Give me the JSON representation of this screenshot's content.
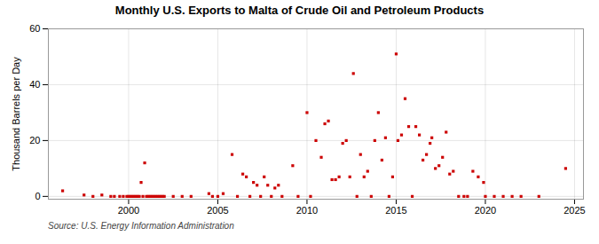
{
  "chart_data": {
    "type": "scatter",
    "title": "Monthly U.S. Exports to Malta of Crude Oil and Petroleum Products",
    "ylabel": "Thousand Barrels per Day",
    "source": "Source: U.S. Energy Information Administration",
    "x": [
      1996.3,
      1997.5,
      1998.0,
      1998.5,
      1999.0,
      1999.2,
      1999.5,
      1999.7,
      1999.9,
      2000.0,
      2000.1,
      2000.2,
      2000.3,
      2000.4,
      2000.5,
      2000.6,
      2000.7,
      2000.8,
      2000.9,
      2001.0,
      2001.1,
      2001.2,
      2001.3,
      2001.4,
      2001.5,
      2001.6,
      2001.7,
      2001.8,
      2001.9,
      2002.0,
      2002.5,
      2003.0,
      2003.5,
      2004.5,
      2004.7,
      2005.0,
      2005.3,
      2005.8,
      2006.1,
      2006.4,
      2006.6,
      2006.8,
      2007.0,
      2007.2,
      2007.4,
      2007.6,
      2007.8,
      2008.0,
      2008.2,
      2008.4,
      2008.6,
      2009.2,
      2009.5,
      2010.0,
      2010.2,
      2010.5,
      2010.8,
      2011.0,
      2011.2,
      2011.4,
      2011.6,
      2011.8,
      2012.0,
      2012.2,
      2012.4,
      2012.6,
      2012.8,
      2013.0,
      2013.2,
      2013.4,
      2013.6,
      2013.8,
      2014.0,
      2014.2,
      2014.4,
      2014.6,
      2014.8,
      2015.0,
      2015.1,
      2015.3,
      2015.5,
      2015.7,
      2015.9,
      2016.1,
      2016.3,
      2016.5,
      2016.7,
      2016.9,
      2017.0,
      2017.2,
      2017.4,
      2017.6,
      2017.8,
      2018.0,
      2018.2,
      2018.5,
      2018.8,
      2019.0,
      2019.3,
      2019.6,
      2019.9,
      2020.0,
      2020.5,
      2021.0,
      2021.5,
      2022.0,
      2023.0,
      2024.5
    ],
    "values": [
      2,
      0.5,
      0,
      0.5,
      0,
      0,
      0,
      0,
      0,
      0,
      0,
      0,
      0,
      0,
      0,
      0,
      5,
      0,
      12,
      0,
      0,
      0,
      0,
      0,
      0,
      0,
      0,
      0,
      0,
      0,
      0,
      0,
      0,
      1,
      0,
      0,
      1,
      15,
      0,
      8,
      7,
      0,
      5,
      4,
      0,
      7,
      4,
      0,
      3,
      4,
      0,
      11,
      0,
      30,
      0,
      20,
      14,
      26,
      27,
      6,
      6,
      7,
      19,
      20,
      7,
      44,
      0,
      15,
      7,
      9,
      0,
      20,
      30,
      13,
      21,
      0,
      7,
      51,
      20,
      22,
      35,
      25,
      0,
      25,
      22,
      13,
      15,
      19,
      21,
      10,
      11,
      14,
      23,
      8,
      9,
      0,
      0,
      0,
      9,
      7,
      5,
      0,
      0,
      0,
      0,
      0,
      0,
      10
    ],
    "color": "#cc0000",
    "marker": "square",
    "xlim": [
      1995.5,
      2025.5
    ],
    "ylim": [
      -1,
      60
    ],
    "xticks": [
      2000,
      2005,
      2010,
      2015,
      2020,
      2025
    ],
    "yticks": [
      0,
      20,
      40,
      60
    ],
    "grid": true
  }
}
